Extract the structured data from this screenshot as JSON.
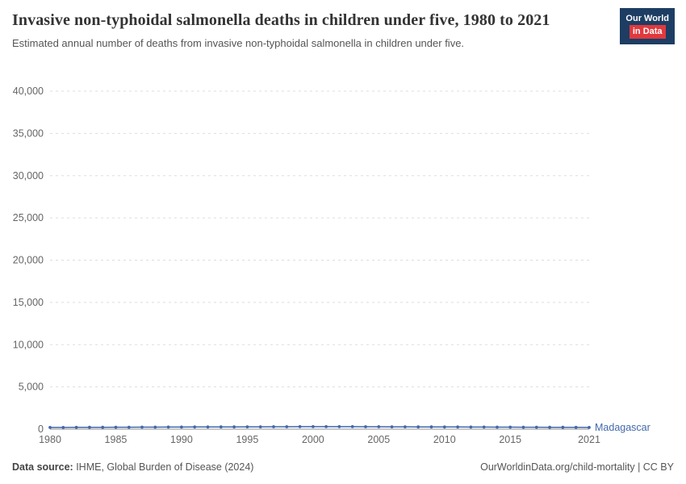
{
  "header": {
    "title": "Invasive non-typhoidal salmonella deaths in children under five, 1980 to 2021",
    "subtitle": "Estimated annual number of deaths from invasive non-typhoidal salmonella in children under five.",
    "logo": {
      "line1": "Our World",
      "line2": "in Data"
    }
  },
  "chart_data": {
    "type": "line",
    "title": "Invasive non-typhoidal salmonella deaths in children under five, 1980 to 2021",
    "subtitle": "Estimated annual number of deaths from invasive non-typhoidal salmonella in children under five.",
    "xlabel": "",
    "ylabel": "",
    "ylim": [
      0,
      40000
    ],
    "yticks": [
      0,
      5000,
      10000,
      15000,
      20000,
      25000,
      30000,
      35000,
      40000
    ],
    "xticks": [
      1980,
      1985,
      1990,
      1995,
      2000,
      2005,
      2010,
      2015,
      2021
    ],
    "grid": true,
    "legend_position": "right-of-line",
    "x": [
      1980,
      1981,
      1982,
      1983,
      1984,
      1985,
      1986,
      1987,
      1988,
      1989,
      1990,
      1991,
      1992,
      1993,
      1994,
      1995,
      1996,
      1997,
      1998,
      1999,
      2000,
      2001,
      2002,
      2003,
      2004,
      2005,
      2006,
      2007,
      2008,
      2009,
      2010,
      2011,
      2012,
      2013,
      2014,
      2015,
      2016,
      2017,
      2018,
      2019,
      2020,
      2021
    ],
    "series": [
      {
        "name": "Madagascar",
        "color": "#4268AB",
        "values": [
          200,
          205,
          210,
          215,
          220,
          225,
          230,
          235,
          240,
          245,
          250,
          255,
          260,
          265,
          270,
          275,
          280,
          285,
          290,
          295,
          300,
          300,
          300,
          295,
          290,
          285,
          280,
          275,
          270,
          265,
          260,
          255,
          250,
          245,
          240,
          235,
          230,
          225,
          220,
          215,
          210,
          205
        ]
      }
    ]
  },
  "footer": {
    "source_label": "Data source:",
    "source_text": " IHME, Global Burden of Disease (2024)",
    "license_text": "OurWorldinData.org/child-mortality | CC BY"
  },
  "colors": {
    "accent": "#4268AB",
    "logo_navy": "#1d3d63",
    "logo_red": "#e0393e",
    "grid": "#dddddd",
    "zero_axis": "#8f8f8f",
    "axis_text": "#666666"
  }
}
